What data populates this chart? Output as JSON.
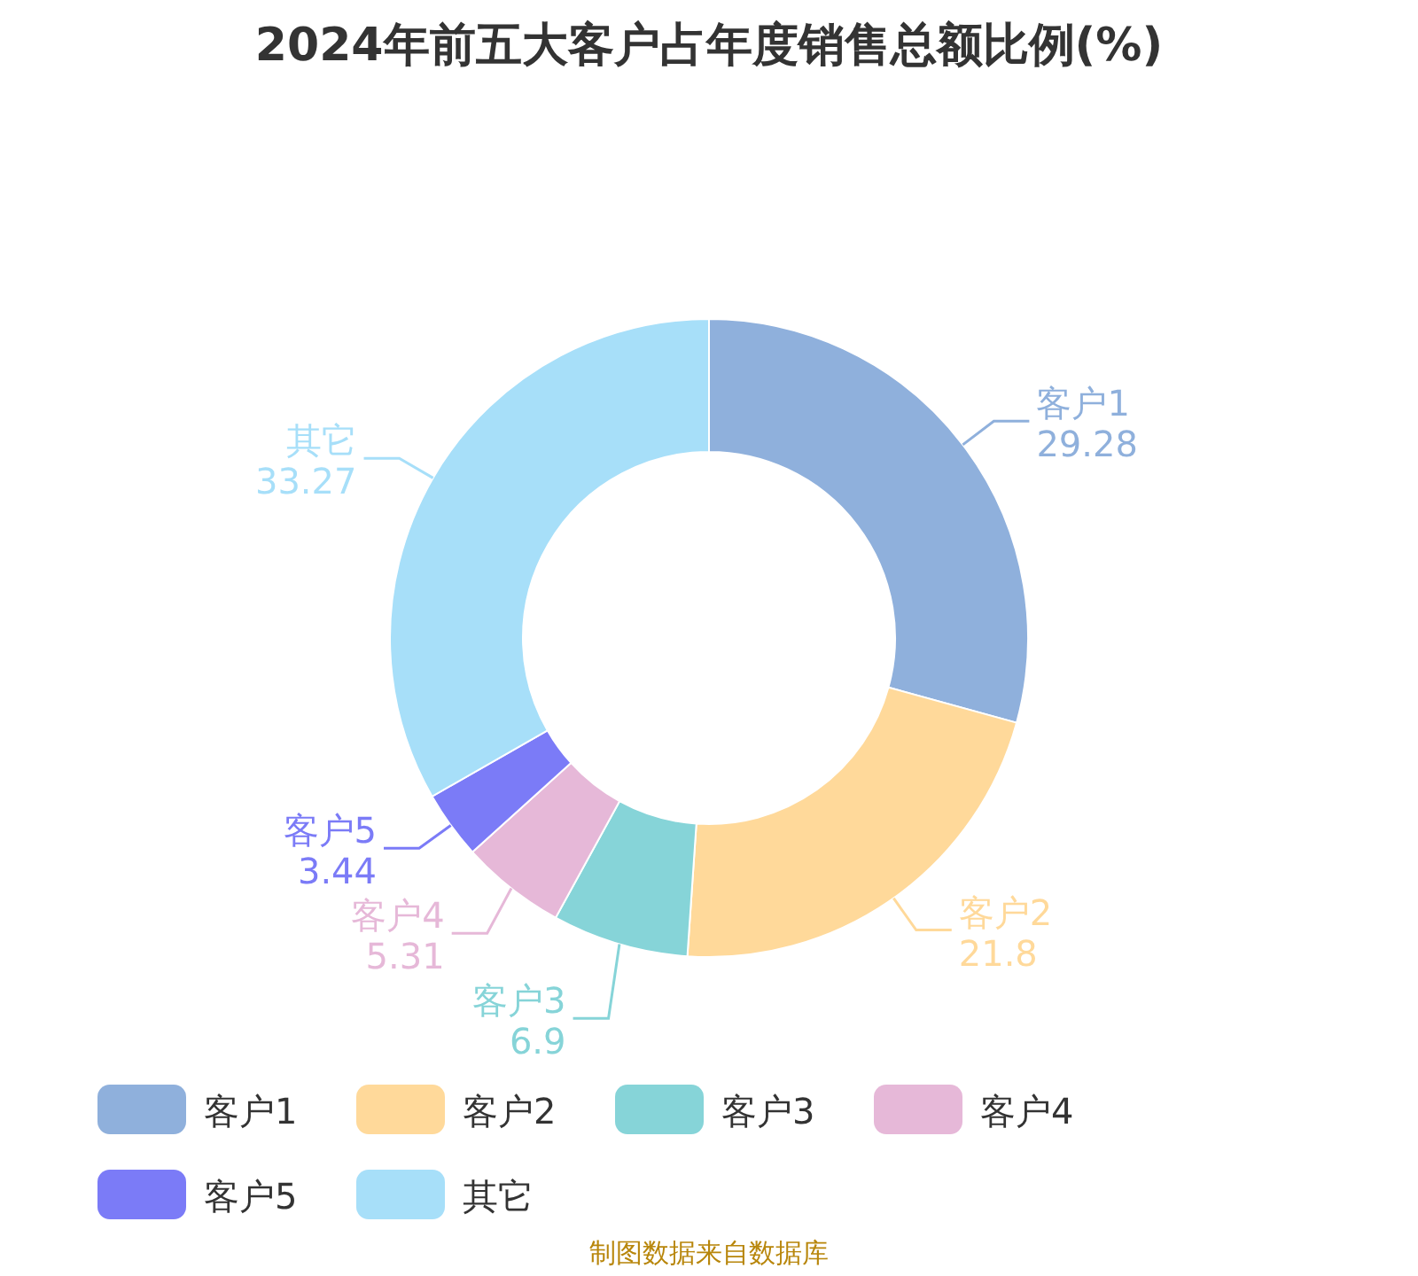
{
  "chart_data": {
    "type": "donut",
    "title": "2024年前五大客户占年度销售总额比例(%)",
    "categories": [
      "客户1",
      "客户2",
      "客户3",
      "客户4",
      "客户5",
      "其它"
    ],
    "values": [
      29.28,
      21.8,
      6.9,
      5.31,
      3.44,
      33.27
    ],
    "colors": [
      "#8fb0dc",
      "#ffd99a",
      "#86d4d8",
      "#e6b8d8",
      "#7b7bf7",
      "#a7dff9"
    ],
    "data_labels": true,
    "legend": "bottom",
    "annotations": [
      "制图数据来自数据库"
    ]
  }
}
